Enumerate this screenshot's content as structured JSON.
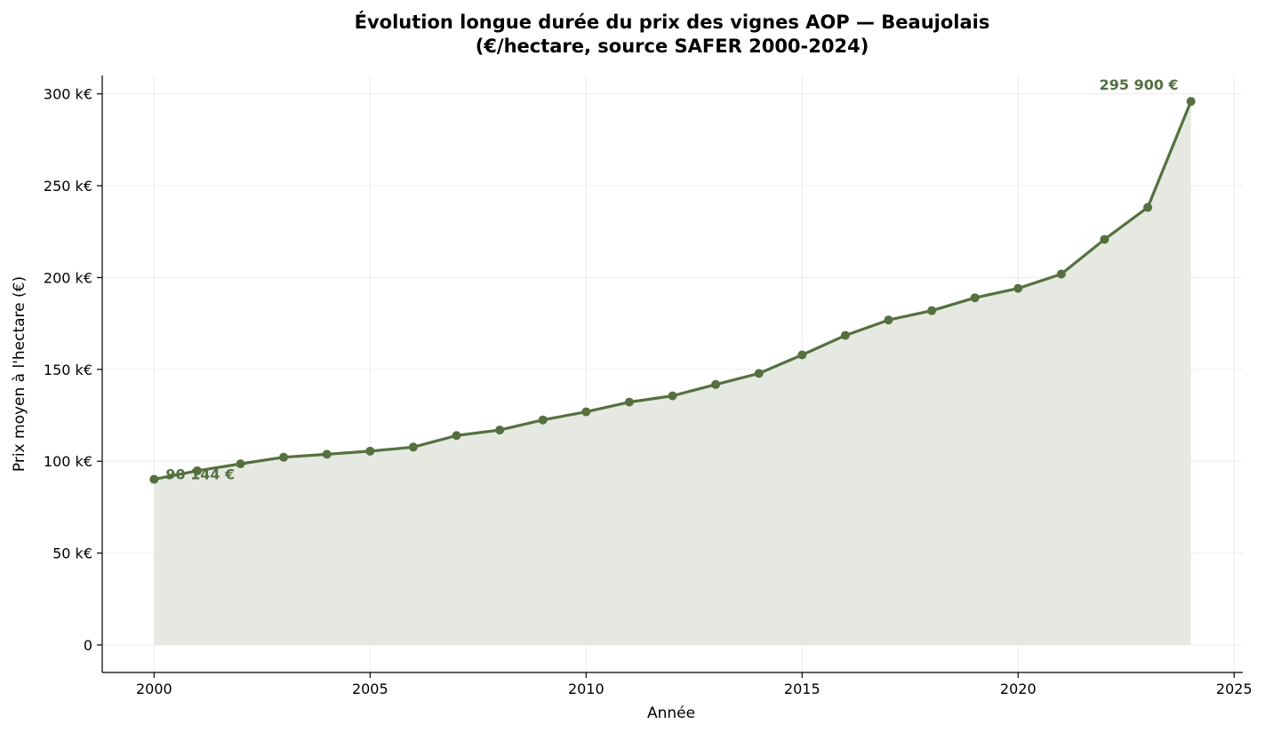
{
  "chart_data": {
    "type": "line",
    "title_line1": "Évolution longue durée du prix des vignes AOP — Beaujolais",
    "title_line2": "(€/hectare, source SAFER 2000-2024)",
    "xlabel": "Année",
    "ylabel": "Prix moyen à l'hectare (€)",
    "x": [
      2000,
      2001,
      2002,
      2003,
      2004,
      2005,
      2006,
      2007,
      2008,
      2009,
      2010,
      2011,
      2012,
      2013,
      2014,
      2015,
      2016,
      2017,
      2018,
      2019,
      2020,
      2021,
      2022,
      2023,
      2024
    ],
    "values": [
      90144,
      94800,
      98600,
      102200,
      103800,
      105500,
      107700,
      114000,
      117000,
      122500,
      126900,
      132200,
      135600,
      141800,
      147800,
      157900,
      168500,
      176900,
      182000,
      189000,
      194100,
      201900,
      220800,
      238200,
      295900
    ],
    "xlim": [
      1998.8,
      2025.2
    ],
    "ylim": [
      -15000,
      310000
    ],
    "x_ticks": [
      2000,
      2005,
      2010,
      2015,
      2020,
      2025
    ],
    "y_ticks": [
      0,
      50000,
      100000,
      150000,
      200000,
      250000,
      300000
    ],
    "y_tick_labels": [
      "0",
      "50 k€",
      "100 k€",
      "150 k€",
      "200 k€",
      "250 k€",
      "300 k€"
    ],
    "grid": true,
    "line_color": "#55703f",
    "fill_color": "#e5e9e1",
    "annotations": {
      "start_label": "90 144 €",
      "end_label": "295 900 €"
    }
  }
}
